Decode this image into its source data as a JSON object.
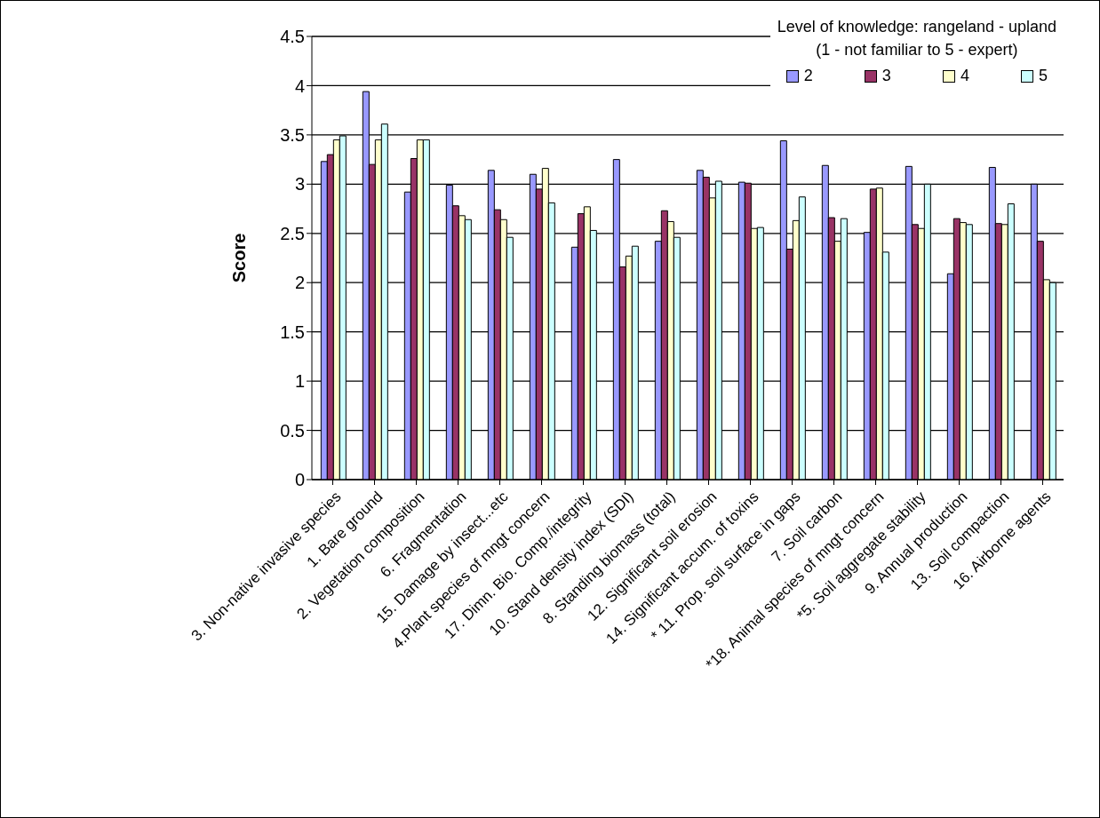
{
  "chart_data": {
    "type": "bar",
    "ylabel": "Score",
    "legend_title": "Level of knowledge: rangeland - upland\n(1 - not familiar to 5 - expert)",
    "categories": [
      "3. Non-native invasive species",
      "1. Bare ground",
      "2. Vegetation composition",
      "6. Fragmentation",
      "15. Damage by insect...etc",
      "4.Plant species of mngt concern",
      "17. Dimn. Bio. Comp./integrity",
      "10. Stand density index (SDI)",
      "8. Standing biomass (total)",
      "12. Significant soil erosion",
      "14. Significant accum. of toxins",
      "* 11. Prop. soil surface in gaps",
      "7. Soil carbon",
      "*18. Animal species of mngt concern",
      "*5. Soil aggregate stability",
      "9. Annual production",
      "13. Soil compaction",
      "16. Airborne agents"
    ],
    "series": [
      {
        "name": "2",
        "color": "#9999ff",
        "values": [
          3.23,
          3.94,
          2.92,
          2.99,
          3.14,
          3.1,
          2.36,
          3.25,
          2.42,
          3.14,
          3.02,
          3.44,
          3.19,
          2.51,
          3.18,
          2.09,
          3.17,
          3.0
        ]
      },
      {
        "name": "3",
        "color": "#993366",
        "values": [
          3.3,
          3.2,
          3.26,
          2.78,
          2.74,
          2.95,
          2.7,
          2.16,
          2.73,
          3.07,
          3.01,
          2.34,
          2.66,
          2.95,
          2.59,
          2.65,
          2.6,
          2.42
        ]
      },
      {
        "name": "4",
        "color": "#ffffcc",
        "values": [
          3.45,
          3.45,
          3.45,
          2.68,
          2.64,
          3.16,
          2.77,
          2.27,
          2.62,
          2.86,
          2.55,
          2.63,
          2.42,
          2.96,
          2.55,
          2.61,
          2.59,
          2.03
        ]
      },
      {
        "name": "5",
        "color": "#ccffff",
        "values": [
          3.49,
          3.61,
          3.45,
          2.64,
          2.46,
          2.81,
          2.53,
          2.37,
          2.46,
          3.03,
          2.56,
          2.87,
          2.65,
          2.31,
          3.0,
          2.59,
          2.8,
          2.0
        ]
      }
    ],
    "ylim": [
      0,
      4.5
    ],
    "yticks": [
      0,
      0.5,
      1,
      1.5,
      2,
      2.5,
      3,
      3.5,
      4,
      4.5
    ],
    "grid": "y",
    "legend": "top right"
  }
}
